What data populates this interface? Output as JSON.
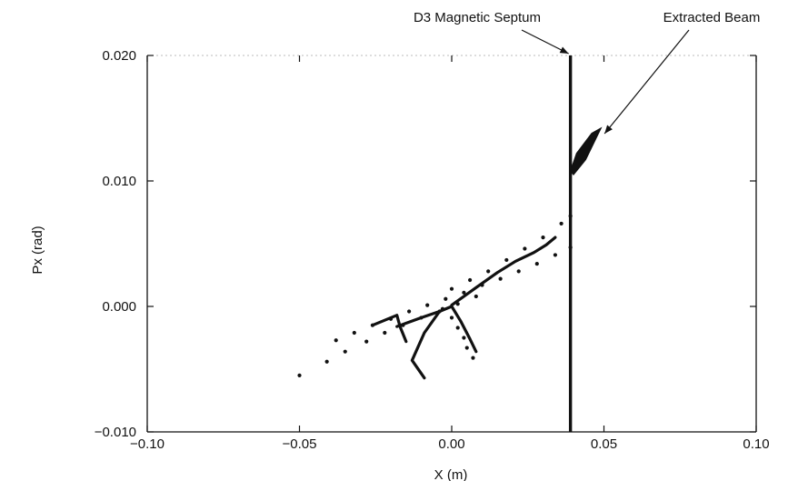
{
  "chart_data": {
    "type": "scatter",
    "title": "",
    "xlabel": "X (m)",
    "ylabel": "Px (rad)",
    "xlim": [
      -0.1,
      0.1
    ],
    "ylim": [
      -0.01,
      0.02
    ],
    "x_ticks": [
      -0.1,
      -0.05,
      0.0,
      0.05,
      0.1
    ],
    "x_tick_labels": [
      "−0.10",
      "−0.05",
      "0.00",
      "0.05",
      "0.10"
    ],
    "y_ticks": [
      -0.01,
      0.0,
      0.01,
      0.02
    ],
    "y_tick_labels": [
      "−0.010",
      "0.000",
      "0.010",
      "0.020"
    ],
    "grid": false,
    "septum": {
      "label": "D3 Magnetic Septum",
      "x": 0.039
    },
    "extracted_beam": {
      "label": "Extracted Beam",
      "polygon": [
        [
          0.039,
          0.0108
        ],
        [
          0.041,
          0.0122
        ],
        [
          0.046,
          0.0138
        ],
        [
          0.049,
          0.0142
        ],
        [
          0.044,
          0.0117
        ],
        [
          0.04,
          0.0105
        ]
      ]
    },
    "series": [
      {
        "style": "dots",
        "points": [
          [
            -0.05,
            -0.0055
          ],
          [
            -0.041,
            -0.0044
          ],
          [
            -0.035,
            -0.0036
          ],
          [
            -0.028,
            -0.0028
          ],
          [
            -0.022,
            -0.0021
          ],
          [
            -0.016,
            -0.0015
          ],
          [
            -0.01,
            -0.0009
          ],
          [
            -0.004,
            -0.0004
          ],
          [
            0.002,
            0.0002
          ],
          [
            0.008,
            0.0008
          ]
        ]
      },
      {
        "style": "dots",
        "points": [
          [
            -0.038,
            -0.0027
          ],
          [
            -0.032,
            -0.0021
          ],
          [
            -0.026,
            -0.0015
          ],
          [
            -0.02,
            -0.001
          ],
          [
            -0.014,
            -0.0004
          ],
          [
            -0.008,
            0.0001
          ],
          [
            -0.002,
            0.0006
          ],
          [
            0.004,
            0.0011
          ],
          [
            0.01,
            0.0017
          ],
          [
            0.016,
            0.0022
          ],
          [
            0.022,
            0.0028
          ],
          [
            0.028,
            0.0034
          ],
          [
            0.034,
            0.0041
          ],
          [
            0.039,
            0.0047
          ]
        ]
      },
      {
        "style": "dots",
        "points": [
          [
            0.0,
            0.0014
          ],
          [
            0.006,
            0.0021
          ],
          [
            0.012,
            0.0028
          ],
          [
            0.018,
            0.0037
          ],
          [
            0.024,
            0.0046
          ],
          [
            0.03,
            0.0055
          ],
          [
            0.036,
            0.0066
          ],
          [
            0.039,
            0.0072
          ]
        ]
      },
      {
        "style": "dots",
        "points": [
          [
            -0.003,
            -0.0002
          ],
          [
            0.0,
            -0.0009
          ],
          [
            0.002,
            -0.0017
          ],
          [
            0.004,
            -0.0025
          ],
          [
            0.005,
            -0.0033
          ],
          [
            0.007,
            -0.0041
          ]
        ]
      },
      {
        "style": "line",
        "points": [
          [
            -0.026,
            -0.0015
          ],
          [
            -0.018,
            -0.0007
          ],
          [
            -0.017,
            -0.0016
          ],
          [
            -0.015,
            -0.0028
          ]
        ]
      },
      {
        "style": "line",
        "points": [
          [
            -0.018,
            -0.0016
          ],
          [
            -0.01,
            -0.0009
          ],
          [
            -0.004,
            -0.0004
          ],
          [
            0.0,
            0.0
          ],
          [
            0.003,
            -0.0012
          ],
          [
            0.006,
            -0.0026
          ],
          [
            0.008,
            -0.0036
          ]
        ]
      },
      {
        "style": "line",
        "points": [
          [
            -0.004,
            -0.0004
          ],
          [
            -0.009,
            -0.0021
          ],
          [
            -0.013,
            -0.0043
          ],
          [
            -0.009,
            -0.0057
          ]
        ]
      },
      {
        "style": "line",
        "points": [
          [
            0.0,
            0.0001
          ],
          [
            0.008,
            0.0015
          ],
          [
            0.015,
            0.0027
          ],
          [
            0.021,
            0.0036
          ],
          [
            0.027,
            0.0043
          ],
          [
            0.031,
            0.0049
          ],
          [
            0.034,
            0.0055
          ]
        ]
      }
    ]
  }
}
